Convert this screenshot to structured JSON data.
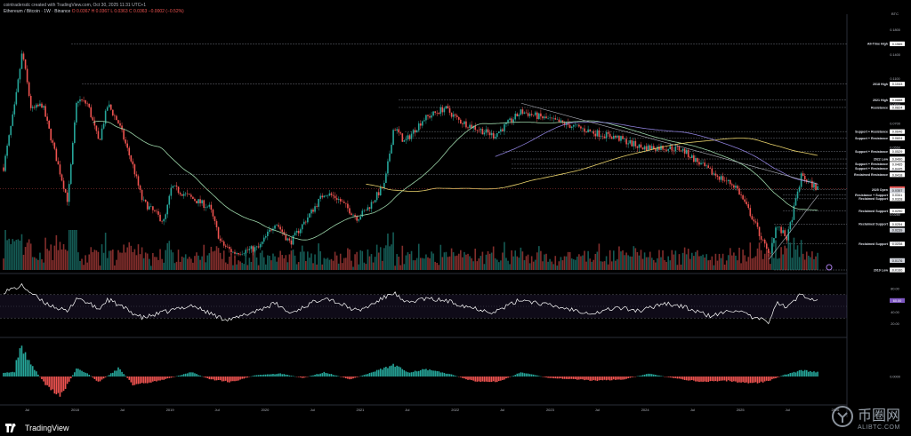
{
  "header": {
    "credit": "cointradersdc created with TradingView.com, Oct 30, 2025 11:31 UTC+1",
    "symbol": "Ethereum / Bitcoin · 1W · Binance",
    "ohlc": "O 0.0367  H 0.0367  L 0.0363  C 0.0363  −0.0002 (−0.52%)"
  },
  "brand": {
    "name": "TradingView",
    "icon": "tradingview-logo-icon"
  },
  "watermark": {
    "title": "币圈网",
    "url": "ALIBTC.COM",
    "icon": "coin-logo-icon"
  },
  "axis": {
    "currency_label": "BTC"
  },
  "colors": {
    "up": "#26a69a",
    "down": "#ef5350",
    "ma_green": "#9bd4a8",
    "ma_yellow": "#e9d26b",
    "ma_purple": "#8c7fd9",
    "rsi_line": "#ffffff",
    "level_line": "#6b6f78"
  },
  "chart_data": {
    "type": "candlestick",
    "title": "Ethereum / Bitcoin · 1W · Binance",
    "ylabel": "BTC",
    "log_scale": true,
    "ylim": [
      0.016,
      0.2
    ],
    "price_ticks": [
      "0.1800",
      "0.1400",
      "0.1100",
      "0.0850",
      "0.0700",
      "0.0550",
      "0.0440",
      "0.0350",
      "0.0280",
      "0.0210",
      "0.0160"
    ],
    "x_ticks": [
      "Jul",
      "2018",
      "Jul",
      "2019",
      "Jul",
      "2020",
      "Jul",
      "2021",
      "Jul",
      "2022",
      "Jul",
      "2023",
      "Jul",
      "2024",
      "Jul",
      "2025",
      "Jul",
      "2026"
    ],
    "x_range": [
      "2017-04",
      "2026-02"
    ],
    "grid": false,
    "close_path": [
      [
        "2017-04-01",
        0.045
      ],
      [
        "2017-05-15",
        0.085
      ],
      [
        "2017-06-12",
        0.145
      ],
      [
        "2017-07-17",
        0.08
      ],
      [
        "2017-08-28",
        0.085
      ],
      [
        "2017-10-30",
        0.045
      ],
      [
        "2017-12-04",
        0.032
      ],
      [
        "2018-01-08",
        0.09
      ],
      [
        "2018-02-19",
        0.085
      ],
      [
        "2018-04-02",
        0.058
      ],
      [
        "2018-05-07",
        0.085
      ],
      [
        "2018-06-18",
        0.07
      ],
      [
        "2018-08-13",
        0.045
      ],
      [
        "2018-09-17",
        0.032
      ],
      [
        "2018-12-10",
        0.026
      ],
      [
        "2019-01-07",
        0.037
      ],
      [
        "2019-03-25",
        0.033
      ],
      [
        "2019-06-03",
        0.03
      ],
      [
        "2019-07-15",
        0.021
      ],
      [
        "2019-09-02",
        0.019
      ],
      [
        "2019-12-09",
        0.02
      ],
      [
        "2020-02-10",
        0.026
      ],
      [
        "2020-04-06",
        0.021
      ],
      [
        "2020-06-01",
        0.026
      ],
      [
        "2020-08-17",
        0.035
      ],
      [
        "2020-10-05",
        0.033
      ],
      [
        "2020-12-21",
        0.027
      ],
      [
        "2021-02-01",
        0.03
      ],
      [
        "2021-04-05",
        0.038
      ],
      [
        "2021-05-10",
        0.068
      ],
      [
        "2021-06-21",
        0.058
      ],
      [
        "2021-08-30",
        0.073
      ],
      [
        "2021-11-22",
        0.082
      ],
      [
        "2022-01-17",
        0.072
      ],
      [
        "2022-03-07",
        0.068
      ],
      [
        "2022-05-30",
        0.062
      ],
      [
        "2022-09-12",
        0.079
      ],
      [
        "2022-12-26",
        0.073
      ],
      [
        "2023-04-03",
        0.068
      ],
      [
        "2023-06-19",
        0.064
      ],
      [
        "2023-09-11",
        0.061
      ],
      [
        "2023-12-18",
        0.055
      ],
      [
        "2024-03-11",
        0.055
      ],
      [
        "2024-05-20",
        0.054
      ],
      [
        "2024-09-09",
        0.043
      ],
      [
        "2024-12-16",
        0.037
      ],
      [
        "2025-02-17",
        0.027
      ],
      [
        "2025-04-21",
        0.0185
      ],
      [
        "2025-05-19",
        0.025
      ],
      [
        "2025-06-30",
        0.022
      ],
      [
        "2025-08-25",
        0.042
      ],
      [
        "2025-09-15",
        0.039
      ],
      [
        "2025-10-27",
        0.0363
      ]
    ],
    "levels": [
      {
        "label": "All-Time High",
        "value": 0.1565,
        "tag": "0.1565"
      },
      {
        "label": "2018 High",
        "value": 0.1043,
        "tag": "0.1043"
      },
      {
        "label": "2021 High",
        "value": 0.0888,
        "tag": "0.0888"
      },
      {
        "label": "Resistance",
        "value": 0.0824,
        "tag": "0.0824"
      },
      {
        "label": "Support + Resistance",
        "value": 0.0646,
        "tag": "0.0646"
      },
      {
        "label": "Support + Resistance",
        "value": 0.0604,
        "tag": "0.0604"
      },
      {
        "label": "Support + Resistance",
        "value": 0.0529,
        "tag": "0.0529"
      },
      {
        "label": "2022 Low",
        "value": 0.049,
        "tag": "0.0490"
      },
      {
        "label": "Support + Resistance",
        "value": 0.0465,
        "tag": "0.0465"
      },
      {
        "label": "Support + Resistance",
        "value": 0.0445,
        "tag": "0.0445"
      },
      {
        "label": "Reclaimed Resistance",
        "value": 0.0418,
        "tag": "0.0418"
      },
      {
        "label": "2025 Open",
        "value": 0.0359,
        "tag": "0.0359"
      },
      {
        "label": "Resistance + Support",
        "value": 0.0341,
        "tag": "0.0341"
      },
      {
        "label": "Reclaimed Support",
        "value": 0.0328,
        "tag": "0.0328"
      },
      {
        "label": "Reclaimed Support",
        "value": 0.029,
        "tag": "0.0290"
      },
      {
        "label": "Reclaimed Support",
        "value": 0.0254,
        "tag": "0.0254"
      },
      {
        "label": "Reclaimed Support",
        "value": 0.0208,
        "tag": "0.0208"
      },
      {
        "label": "2019 Low",
        "value": 0.016,
        "tag": "0.0160"
      }
    ],
    "price_tags_extra": [
      {
        "value": 0.0363,
        "tag": "0.0363",
        "color": "#ef5350"
      },
      {
        "value": 0.0357,
        "tag": "0.0357",
        "color": "#d1d4dc"
      },
      {
        "value": 0.0239,
        "tag": "0.0239",
        "color": "#d1d4dc"
      },
      {
        "value": 0.0176,
        "tag": "0.0176",
        "color": "#d1d4dc"
      }
    ],
    "rsi": {
      "name": "RSI",
      "range": [
        0,
        100
      ],
      "band": [
        30,
        70
      ],
      "ticks": [
        "80.00",
        "60.00",
        "40.00",
        "20.00"
      ],
      "current": 60.0,
      "path": [
        [
          "2017-04-01",
          75
        ],
        [
          "2017-06-12",
          85
        ],
        [
          "2017-08-28",
          58
        ],
        [
          "2017-12-04",
          40
        ],
        [
          "2018-01-08",
          66
        ],
        [
          "2018-04-02",
          45
        ],
        [
          "2018-05-07",
          62
        ],
        [
          "2018-09-17",
          30
        ],
        [
          "2018-12-10",
          40
        ],
        [
          "2019-03-25",
          52
        ],
        [
          "2019-07-15",
          30
        ],
        [
          "2019-09-02",
          28
        ],
        [
          "2020-02-10",
          55
        ],
        [
          "2020-04-06",
          38
        ],
        [
          "2020-08-17",
          66
        ],
        [
          "2020-12-21",
          42
        ],
        [
          "2021-02-01",
          50
        ],
        [
          "2021-05-10",
          74
        ],
        [
          "2021-06-21",
          55
        ],
        [
          "2021-08-30",
          63
        ],
        [
          "2021-11-22",
          60
        ],
        [
          "2022-03-07",
          48
        ],
        [
          "2022-05-30",
          40
        ],
        [
          "2022-09-12",
          62
        ],
        [
          "2022-12-26",
          52
        ],
        [
          "2023-04-03",
          44
        ],
        [
          "2023-06-19",
          38
        ],
        [
          "2023-09-11",
          48
        ],
        [
          "2023-12-18",
          42
        ],
        [
          "2024-03-11",
          56
        ],
        [
          "2024-05-20",
          50
        ],
        [
          "2024-09-09",
          33
        ],
        [
          "2024-12-16",
          45
        ],
        [
          "2025-02-17",
          30
        ],
        [
          "2025-04-21",
          24
        ],
        [
          "2025-05-19",
          56
        ],
        [
          "2025-06-30",
          48
        ],
        [
          "2025-08-25",
          72
        ],
        [
          "2025-09-15",
          66
        ],
        [
          "2025-10-27",
          60
        ]
      ]
    },
    "macd": {
      "name": "MACD",
      "zero_tick": "0.0000",
      "bars": [
        [
          "2017-05-15",
          6
        ],
        [
          "2017-06-12",
          10
        ],
        [
          "2017-07-17",
          4
        ],
        [
          "2017-09-11",
          -3
        ],
        [
          "2017-11-06",
          -7
        ],
        [
          "2018-01-08",
          3
        ],
        [
          "2018-02-19",
          1
        ],
        [
          "2018-04-02",
          -2
        ],
        [
          "2018-06-18",
          3
        ],
        [
          "2018-08-13",
          -3
        ],
        [
          "2018-10-15",
          -2
        ],
        [
          "2018-12-10",
          -1
        ],
        [
          "2019-03-25",
          1.5
        ],
        [
          "2019-06-03",
          -1
        ],
        [
          "2019-08-26",
          -2
        ],
        [
          "2019-11-25",
          0.5
        ],
        [
          "2020-03-02",
          1
        ],
        [
          "2020-05-25",
          -0.5
        ],
        [
          "2020-08-17",
          1.5
        ],
        [
          "2020-11-23",
          -1
        ],
        [
          "2021-02-01",
          1
        ],
        [
          "2021-05-10",
          4
        ],
        [
          "2021-07-05",
          1.5
        ],
        [
          "2021-09-06",
          2.5
        ],
        [
          "2021-12-06",
          1
        ],
        [
          "2022-03-07",
          -1.5
        ],
        [
          "2022-06-13",
          -2
        ],
        [
          "2022-09-12",
          1.5
        ],
        [
          "2022-12-26",
          -0.5
        ],
        [
          "2023-04-03",
          -1
        ],
        [
          "2023-07-03",
          -1.5
        ],
        [
          "2023-10-09",
          -1
        ],
        [
          "2024-01-15",
          1
        ],
        [
          "2024-04-15",
          -0.5
        ],
        [
          "2024-08-12",
          -2
        ],
        [
          "2024-11-18",
          -1.5
        ],
        [
          "2025-02-17",
          -2.5
        ],
        [
          "2025-04-21",
          -1.5
        ],
        [
          "2025-06-16",
          0.5
        ],
        [
          "2025-08-25",
          2.2
        ],
        [
          "2025-10-27",
          1.5
        ]
      ]
    }
  }
}
